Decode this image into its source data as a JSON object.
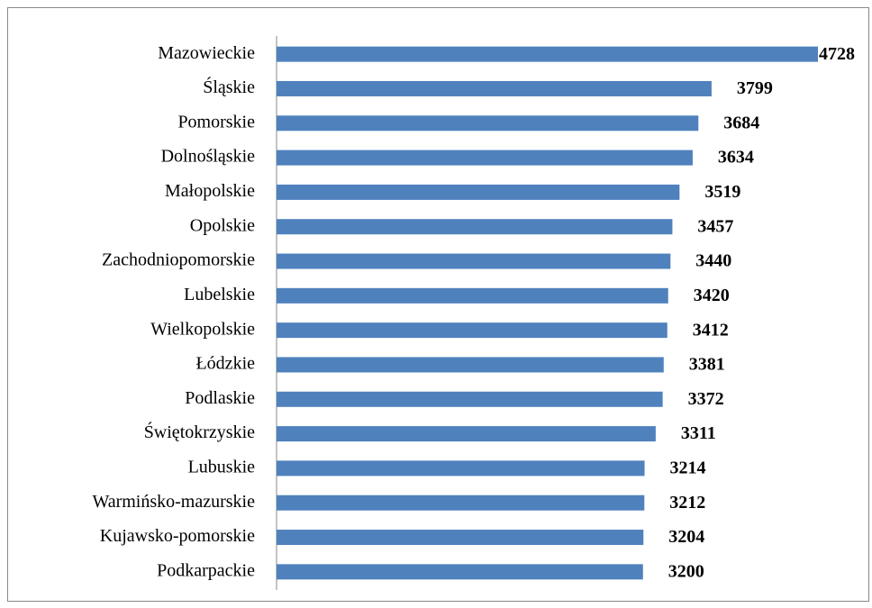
{
  "chart_data": {
    "type": "bar",
    "orientation": "horizontal",
    "categories": [
      "Mazowieckie",
      "Śląskie",
      "Pomorskie",
      "Dolnośląskie",
      "Małopolskie",
      "Opolskie",
      "Zachodniopomorskie",
      "Lubelskie",
      "Wielkopolskie",
      "Łódzkie",
      "Podlaskie",
      "Świętokrzyskie",
      "Lubuskie ",
      "Warmińsko-mazurskie",
      "Kujawsko-pomorskie",
      "Podkarpackie"
    ],
    "values": [
      4728,
      3799,
      3684,
      3634,
      3519,
      3457,
      3440,
      3420,
      3412,
      3381,
      3372,
      3311,
      3214,
      3212,
      3204,
      3200
    ],
    "color": "#4f81bd",
    "xlim": [
      0,
      4728
    ]
  }
}
